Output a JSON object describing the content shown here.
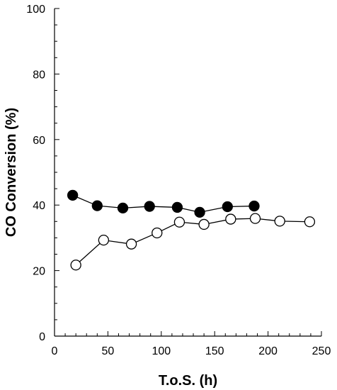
{
  "chart_data": {
    "type": "scatter",
    "title": "",
    "xlabel": "T.o.S. (h)",
    "ylabel": "CO Conversion (%)",
    "xlim": [
      0,
      250
    ],
    "ylim": [
      0,
      100
    ],
    "x_ticks": [
      "0",
      "50",
      "100",
      "150",
      "200",
      "250"
    ],
    "y_ticks": [
      "0",
      "20",
      "40",
      "60",
      "80",
      "100"
    ],
    "grid": false,
    "series": [
      {
        "marker": "filled-circle",
        "color": "#000000",
        "fill": "#000000",
        "x": [
          17,
          40,
          64,
          89,
          115,
          136,
          162,
          187
        ],
        "y": [
          43.0,
          39.8,
          39.1,
          39.6,
          39.3,
          37.8,
          39.5,
          39.7
        ]
      },
      {
        "marker": "open-circle",
        "color": "#000000",
        "fill": "#ffffff",
        "x": [
          20,
          46,
          72,
          96,
          117,
          140,
          165,
          188,
          211,
          239
        ],
        "y": [
          21.7,
          29.3,
          28.1,
          31.5,
          34.8,
          34.1,
          35.7,
          35.9,
          35.1,
          34.9
        ]
      }
    ]
  }
}
